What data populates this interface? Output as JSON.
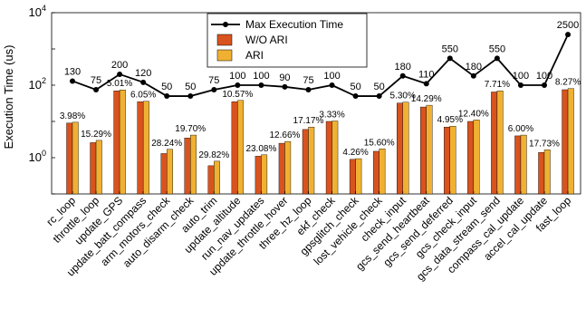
{
  "chart_data": {
    "type": "bar",
    "ylabel": "Execution Time (us)",
    "yscale": "log",
    "ylim": [
      0.1,
      10000
    ],
    "yticks": [
      {
        "value": 1,
        "base": "10",
        "exp": "0"
      },
      {
        "value": 100,
        "base": "10",
        "exp": "2"
      },
      {
        "value": 10000,
        "base": "10",
        "exp": "4"
      }
    ],
    "categories": [
      "rc_loop",
      "throttle_loop",
      "update_GPS",
      "update_batt_compass",
      "arm_motors_check",
      "auto_disarm_check",
      "auto_trim",
      "update_altitude",
      "run_nav_updates",
      "update_throttle_hover",
      "three_hz_loop",
      "ekf_check",
      "gpsglitch_check",
      "lost_vehicle_check",
      "check_input",
      "gcs_send_heartbeat",
      "gcs_send_deferred",
      "gcs_check_input",
      "gcs_data_stream_send",
      "compass_cal_update",
      "accel_cal_update",
      "fast_loop"
    ],
    "series": [
      {
        "name": "Max Execution Time",
        "kind": "line",
        "color": "#000000",
        "values": [
          130,
          75,
          200,
          120,
          50,
          50,
          75,
          100,
          100,
          90,
          75,
          100,
          50,
          50,
          180,
          110,
          550,
          180,
          550,
          100,
          100,
          2500
        ],
        "labels": [
          "130",
          "75",
          "200",
          "120",
          "50",
          "50",
          "75",
          "100",
          "100",
          "90",
          "75",
          "100",
          "50",
          "50",
          "180",
          "110",
          "550",
          "180",
          "550",
          "100",
          "100",
          "2500"
        ]
      },
      {
        "name": "W/O ARI",
        "kind": "bar",
        "color": "#d9531e",
        "values": [
          9.0,
          2.6,
          70,
          35,
          1.3,
          3.5,
          0.6,
          35,
          1.1,
          2.5,
          6.0,
          10,
          0.9,
          1.5,
          32,
          25,
          7.0,
          10,
          65,
          4.0,
          1.4,
          75
        ]
      },
      {
        "name": "ARI",
        "kind": "bar",
        "color": "#f0b132",
        "values": [
          9.5,
          3.0,
          74,
          36,
          1.7,
          4.2,
          0.8,
          38,
          1.2,
          2.8,
          7.0,
          10.3,
          0.94,
          1.75,
          34,
          28,
          7.4,
          11,
          70,
          4.2,
          1.65,
          81
        ]
      }
    ],
    "percent_labels": [
      "3.98%",
      "15.29%",
      "5.01%",
      "6.05%",
      "28.24%",
      "19.70%",
      "29.82%",
      "10.57%",
      "23.08%",
      "12.66%",
      "17.17%",
      "3.33%",
      "4.26%",
      "15.60%",
      "5.30%",
      "14.29%",
      "4.95%",
      "12.40%",
      "7.71%",
      "6.00%",
      "17.73%",
      "8.27%"
    ],
    "legend_position": "top-right",
    "grid": false
  }
}
